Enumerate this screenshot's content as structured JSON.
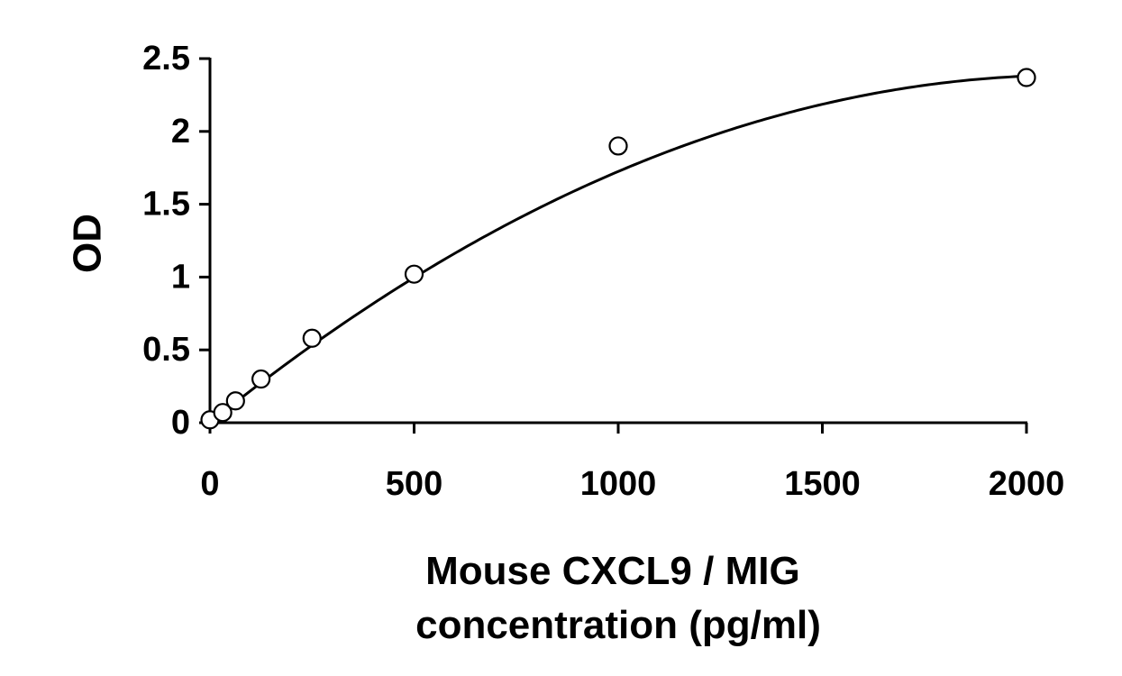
{
  "chart_data": {
    "type": "scatter",
    "title": "",
    "xlabel_lines": [
      "Mouse CXCL9 / MIG",
      "concentration (pg/ml)"
    ],
    "ylabel": "OD",
    "xlim": [
      0,
      2000
    ],
    "ylim": [
      0,
      2.5
    ],
    "x_ticks": [
      0,
      500,
      1000,
      1500,
      2000
    ],
    "y_ticks": [
      0,
      0.5,
      1,
      1.5,
      2,
      2.5
    ],
    "x_tick_labels": [
      "0",
      "500",
      "1000",
      "1500",
      "2000"
    ],
    "y_tick_labels": [
      "0",
      "0.5",
      "1",
      "1.5",
      "2",
      "2.5"
    ],
    "grid": false,
    "legend": "none",
    "series": [
      {
        "marker": "open-circle",
        "x": [
          0,
          31.25,
          62.5,
          125,
          250,
          500,
          1000,
          2000
        ],
        "y": [
          0.02,
          0.07,
          0.15,
          0.3,
          0.58,
          1.02,
          1.9,
          2.37
        ]
      }
    ],
    "fit_curve": {
      "kind": "polynomial",
      "coefficients": [
        0.0,
        0.00226,
        -5.35e-07
      ],
      "x_range": [
        0,
        2000
      ]
    },
    "colors": {
      "marker_edge": "#000000",
      "marker_fill": "#ffffff",
      "line": "#000000"
    }
  }
}
